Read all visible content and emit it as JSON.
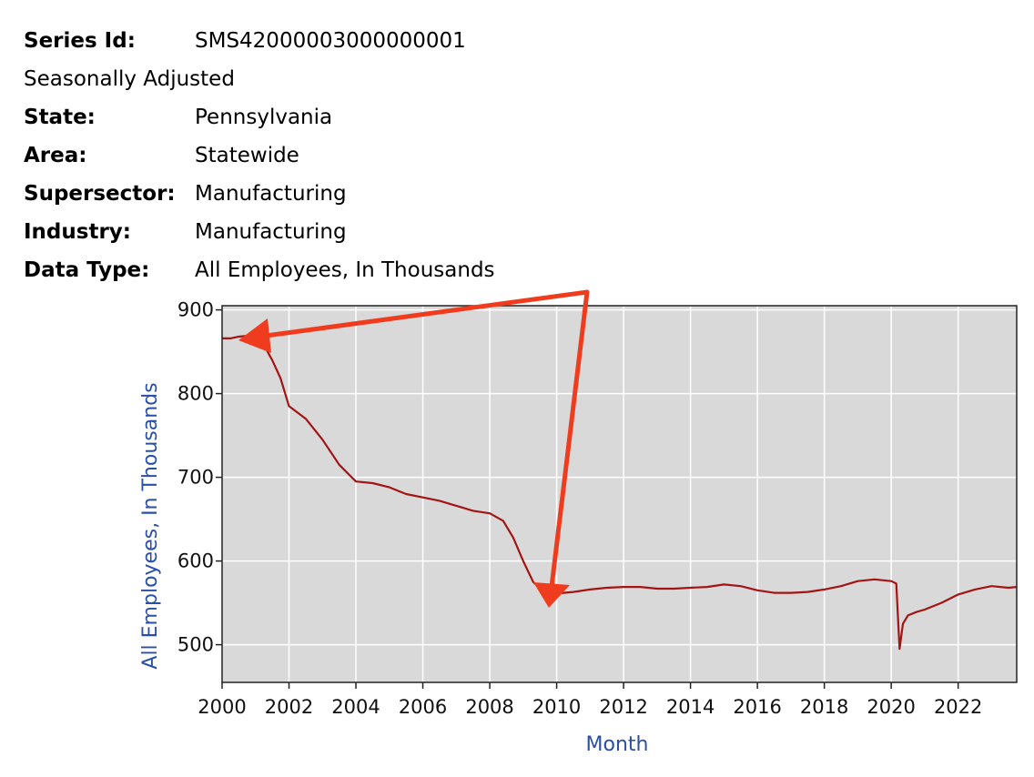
{
  "series_info": {
    "series_id_label": "Series Id:",
    "series_id_value": "SMS42000003000000001",
    "adjustment": "Seasonally Adjusted",
    "state_label": "State:",
    "state_value": "Pennsylvania",
    "area_label": "Area:",
    "area_value": "Statewide",
    "supersector_label": "Supersector:",
    "supersector_value": "Manufacturing",
    "industry_label": "Industry:",
    "industry_value": "Manufacturing",
    "data_type_label": "Data Type:",
    "data_type_value": "All Employees, In Thousands"
  },
  "colors": {
    "line": "#a31515",
    "plot_bg": "#d9d9d9",
    "grid": "#ffffff",
    "axis_title": "#2a4fa8",
    "annotation_arrow": "#f03c1e"
  },
  "chart_data": {
    "type": "line",
    "xlabel": "Month",
    "ylabel": "All Employees, In Thousands",
    "xlim": [
      2000,
      2023.75
    ],
    "ylim": [
      455,
      905
    ],
    "x_ticks": [
      2000,
      2002,
      2004,
      2006,
      2008,
      2010,
      2012,
      2014,
      2016,
      2018,
      2020,
      2022
    ],
    "x_tick_labels": [
      "2000",
      "2002",
      "2004",
      "2006",
      "2008",
      "2010",
      "2012",
      "2014",
      "2016",
      "2018",
      "2020",
      "2022"
    ],
    "y_ticks": [
      500,
      600,
      700,
      800,
      900
    ],
    "y_tick_labels": [
      "500",
      "600",
      "700",
      "800",
      "900"
    ],
    "grid": true,
    "series": [
      {
        "x": [
          2000.0,
          2000.25,
          2000.5,
          2000.75,
          2001.0,
          2001.25,
          2001.5,
          2001.75,
          2002.0,
          2002.5,
          2003.0,
          2003.5,
          2004.0,
          2004.5,
          2005.0,
          2005.5,
          2006.0,
          2006.5,
          2007.0,
          2007.5,
          2008.0,
          2008.4,
          2008.7,
          2009.0,
          2009.3,
          2009.6,
          2009.9,
          2010.2,
          2010.5,
          2011.0,
          2011.5,
          2012.0,
          2012.5,
          2013.0,
          2013.5,
          2014.0,
          2014.5,
          2015.0,
          2015.5,
          2016.0,
          2016.5,
          2017.0,
          2017.5,
          2018.0,
          2018.5,
          2019.0,
          2019.5,
          2020.0,
          2020.15,
          2020.25,
          2020.35,
          2020.5,
          2020.75,
          2021.0,
          2021.5,
          2022.0,
          2022.5,
          2023.0,
          2023.5,
          2023.75
        ],
        "values": [
          866,
          866,
          868,
          869,
          866,
          858,
          840,
          818,
          785,
          770,
          745,
          715,
          695,
          693,
          688,
          680,
          676,
          672,
          666,
          660,
          657,
          648,
          628,
          600,
          575,
          563,
          561,
          562,
          563,
          566,
          568,
          569,
          569,
          567,
          567,
          568,
          569,
          572,
          570,
          565,
          562,
          562,
          563,
          566,
          570,
          576,
          578,
          576,
          573,
          495,
          525,
          535,
          539,
          542,
          550,
          560,
          566,
          570,
          568,
          569
        ]
      }
    ]
  }
}
